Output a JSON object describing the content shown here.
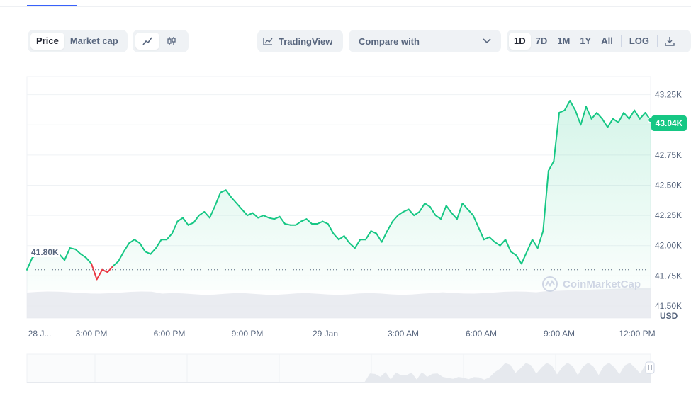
{
  "toolbar": {
    "price_label": "Price",
    "market_cap_label": "Market cap",
    "tradingview_label": "TradingView",
    "compare_label": "Compare with",
    "ranges": [
      "1D",
      "7D",
      "1M",
      "1Y",
      "All"
    ],
    "active_range": "1D",
    "log_label": "LOG"
  },
  "price_tag": "43.04K",
  "reference_label": "41.80K",
  "currency_label": "USD",
  "watermark": "CoinMarketCap",
  "colors": {
    "up": "#16c784",
    "down": "#ea3943",
    "volume": "#e6e9ee"
  },
  "chart_data": {
    "type": "line",
    "x_start": "28 Jan 12:00 PM",
    "x_end": "29 Jan 12:00 PM",
    "ylim": [
      41.4,
      43.4
    ],
    "y_ticks": [
      "43.25K",
      "43.00K",
      "42.75K",
      "42.50K",
      "42.25K",
      "42.00K",
      "41.75K",
      "41.50K"
    ],
    "x_ticks": [
      "28 J...",
      "3:00 PM",
      "6:00 PM",
      "9:00 PM",
      "29 Jan",
      "3:00 AM",
      "6:00 AM",
      "9:00 AM",
      "12:00 PM"
    ],
    "reference_value": 41.8,
    "last_value": 43.04,
    "series": [
      {
        "unit": "K USD",
        "values": [
          41.8,
          41.9,
          41.93,
          41.95,
          41.97,
          41.95,
          41.93,
          41.88,
          41.98,
          41.97,
          41.93,
          41.9,
          41.85,
          41.72,
          41.8,
          41.78,
          41.83,
          41.87,
          41.95,
          42.02,
          42.05,
          42.02,
          41.95,
          41.93,
          41.98,
          42.05,
          42.05,
          42.1,
          42.2,
          42.23,
          42.17,
          42.19,
          42.25,
          42.28,
          42.23,
          42.33,
          42.44,
          42.46,
          42.4,
          42.35,
          42.3,
          42.25,
          42.27,
          42.23,
          42.25,
          42.23,
          42.22,
          42.24,
          42.18,
          42.17,
          42.17,
          42.2,
          42.22,
          42.18,
          42.18,
          42.2,
          42.18,
          42.1,
          42.05,
          42.08,
          42.02,
          41.98,
          42.05,
          42.05,
          42.12,
          42.1,
          42.03,
          42.12,
          42.2,
          42.25,
          42.28,
          42.3,
          42.25,
          42.28,
          42.35,
          42.32,
          42.25,
          42.22,
          42.33,
          42.27,
          42.22,
          42.35,
          42.3,
          42.25,
          42.15,
          42.05,
          42.07,
          42.03,
          42.0,
          42.05,
          41.95,
          41.92,
          41.85,
          41.95,
          42.05,
          41.98,
          42.12,
          42.62,
          42.7,
          43.1,
          43.12,
          43.2,
          43.12,
          43.0,
          43.15,
          43.05,
          43.1,
          43.05,
          42.98,
          43.05,
          43.02,
          43.1,
          43.05,
          43.12,
          43.05,
          43.1,
          43.04
        ]
      }
    ],
    "grid": true,
    "legend": "none"
  }
}
